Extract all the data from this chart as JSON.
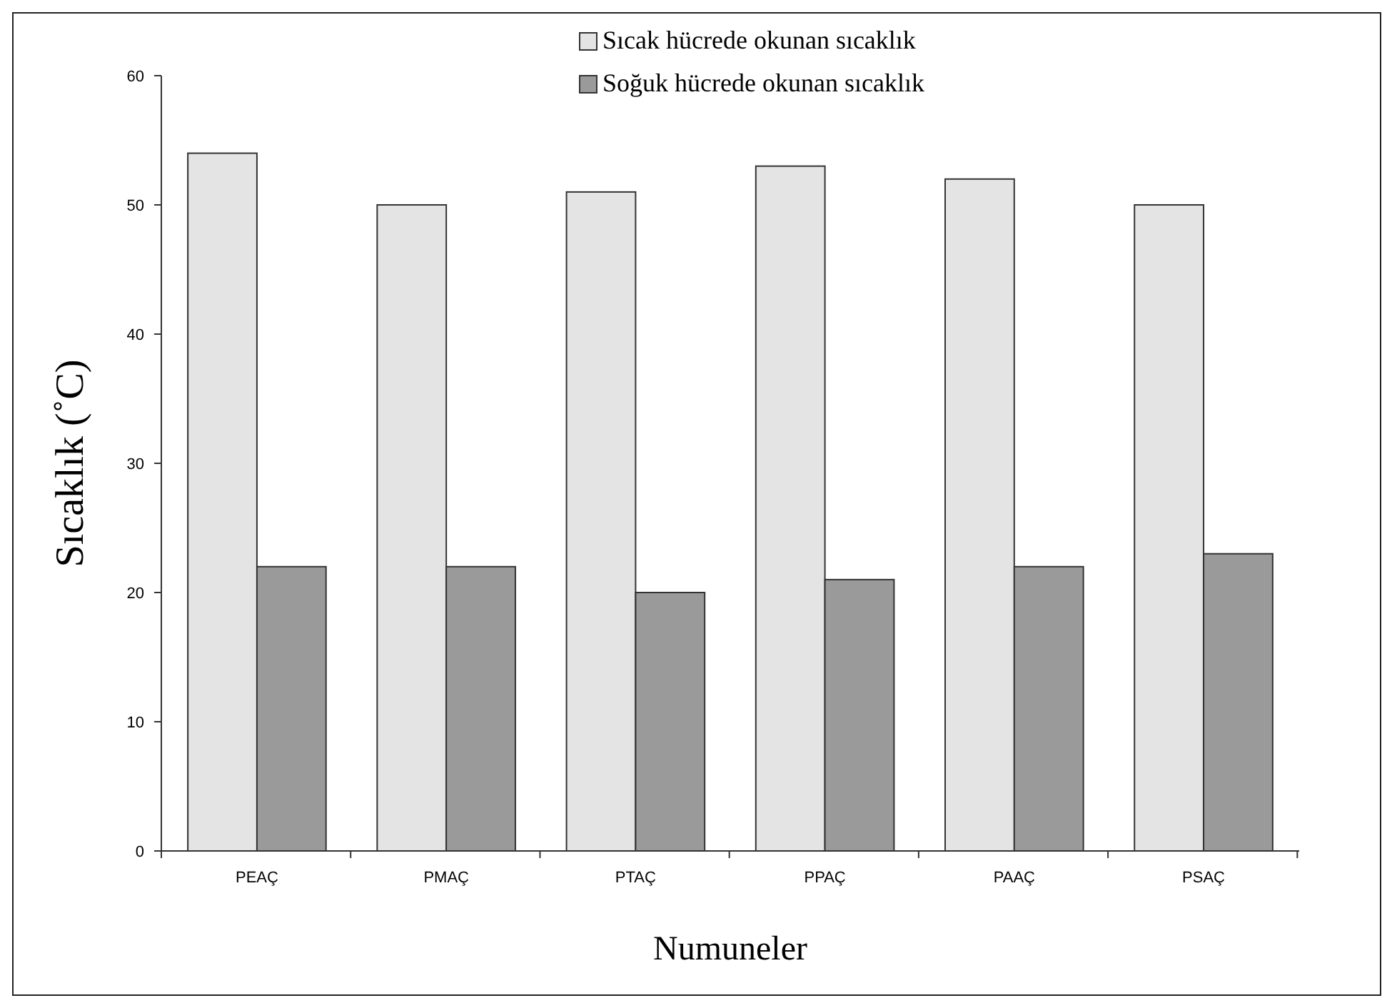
{
  "chart_data": {
    "type": "bar",
    "xlabel": "Numuneler",
    "ylabel": "Sıcaklık (˚C)",
    "categories": [
      "PEAÇ",
      "PMAÇ",
      "PTAÇ",
      "PPAÇ",
      "PAAÇ",
      "PSAÇ"
    ],
    "series": [
      {
        "name": "Sıcak hücrede okunan sıcaklık",
        "color": "#e4e4e4",
        "values": [
          54,
          50,
          51,
          53,
          52,
          50
        ]
      },
      {
        "name": "Soğuk hücrede okunan sıcaklık",
        "color": "#9a9a9a",
        "values": [
          22,
          22,
          20,
          21,
          22,
          23
        ]
      }
    ],
    "ylim": [
      0,
      60
    ],
    "yticks": [
      0,
      10,
      20,
      30,
      40,
      50,
      60
    ],
    "grid": false,
    "legend": "top"
  }
}
